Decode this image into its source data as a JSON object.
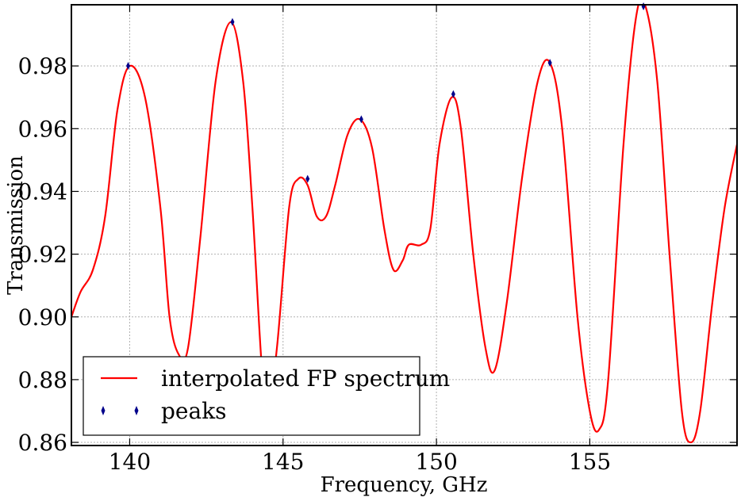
{
  "chart_data": {
    "type": "line",
    "xlabel": "Frequency, GHz",
    "ylabel": "Transmission",
    "xlim": [
      138.1,
      159.8
    ],
    "ylim": [
      0.859,
      0.9995
    ],
    "xticks": [
      140,
      145,
      150,
      155
    ],
    "xtick_labels": [
      "140",
      "145",
      "150",
      "155"
    ],
    "yticks": [
      0.86,
      0.88,
      0.9,
      0.92,
      0.94,
      0.96,
      0.98
    ],
    "ytick_labels": [
      "0.86",
      "0.88",
      "0.90",
      "0.92",
      "0.94",
      "0.96",
      "0.98"
    ],
    "grid": true,
    "legend_position": "lower-left",
    "colors": {
      "line": "#ff0000",
      "peaks": "#00008b"
    },
    "series": [
      {
        "name": "interpolated FP spectrum",
        "kind": "line",
        "color": "#ff0000",
        "x": [
          138.1,
          138.4,
          138.8,
          139.2,
          139.6,
          140.0,
          140.5,
          141.0,
          141.3,
          141.6,
          141.9,
          142.3,
          142.8,
          143.3,
          143.7,
          144.0,
          144.3,
          144.5,
          144.8,
          145.2,
          145.5,
          145.8,
          146.1,
          146.4,
          146.7,
          147.1,
          147.5,
          147.9,
          148.3,
          148.6,
          148.9,
          149.1,
          149.5,
          149.8,
          150.1,
          150.5,
          150.8,
          151.2,
          151.6,
          151.9,
          152.3,
          152.8,
          153.3,
          153.7,
          154.1,
          154.6,
          155.0,
          155.3,
          155.6,
          156.1,
          156.5,
          156.8,
          157.2,
          157.6,
          158.0,
          158.3,
          158.6,
          159.0,
          159.4,
          159.8
        ],
        "y": [
          0.9,
          0.908,
          0.915,
          0.932,
          0.966,
          0.98,
          0.97,
          0.935,
          0.9,
          0.888,
          0.89,
          0.925,
          0.975,
          0.994,
          0.975,
          0.935,
          0.885,
          0.87,
          0.89,
          0.935,
          0.944,
          0.942,
          0.932,
          0.932,
          0.942,
          0.958,
          0.963,
          0.954,
          0.928,
          0.915,
          0.918,
          0.923,
          0.923,
          0.928,
          0.955,
          0.97,
          0.96,
          0.92,
          0.89,
          0.883,
          0.905,
          0.945,
          0.975,
          0.981,
          0.96,
          0.9,
          0.87,
          0.864,
          0.88,
          0.955,
          0.995,
          0.9995,
          0.975,
          0.92,
          0.87,
          0.86,
          0.87,
          0.905,
          0.935,
          0.955
        ]
      },
      {
        "name": "peaks",
        "kind": "scatter",
        "marker": "thin-diamond",
        "color": "#00008b",
        "x": [
          139.95,
          143.35,
          145.8,
          147.55,
          150.55,
          153.7,
          156.75
        ],
        "y": [
          0.98,
          0.994,
          0.944,
          0.963,
          0.971,
          0.981,
          0.999
        ]
      }
    ]
  }
}
